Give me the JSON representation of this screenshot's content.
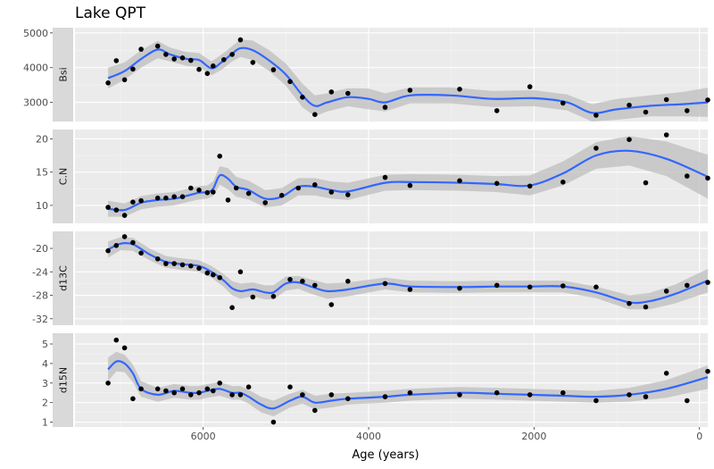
{
  "chart_data": {
    "type": "scatter",
    "title": "Lake QPT",
    "xlabel": "Age (years)",
    "x_reversed": true,
    "xlim": [
      7550,
      -100
    ],
    "x_ticks": [
      6000,
      4000,
      2000,
      0
    ],
    "smoother": {
      "color": "#3366FF",
      "band_color": "#bdbdbd"
    },
    "point_color": "#000000",
    "panels": [
      {
        "name": "Bsi",
        "ylim": [
          2450,
          5150
        ],
        "y_ticks": [
          3000,
          4000,
          5000
        ],
        "points": [
          [
            7150,
            3560
          ],
          [
            7050,
            4200
          ],
          [
            6950,
            3650
          ],
          [
            6850,
            3960
          ],
          [
            6750,
            4530
          ],
          [
            6550,
            4620
          ],
          [
            6450,
            4380
          ],
          [
            6350,
            4250
          ],
          [
            6250,
            4280
          ],
          [
            6150,
            4210
          ],
          [
            6050,
            3950
          ],
          [
            5950,
            3830
          ],
          [
            5880,
            4050
          ],
          [
            5750,
            4230
          ],
          [
            5650,
            4380
          ],
          [
            5550,
            4800
          ],
          [
            5400,
            4150
          ],
          [
            5150,
            3940
          ],
          [
            4950,
            3600
          ],
          [
            4800,
            3150
          ],
          [
            4650,
            2650
          ],
          [
            4450,
            3300
          ],
          [
            4250,
            3260
          ],
          [
            3800,
            2860
          ],
          [
            3500,
            3350
          ],
          [
            2900,
            3380
          ],
          [
            2450,
            2760
          ],
          [
            2050,
            3450
          ],
          [
            1650,
            2980
          ],
          [
            1250,
            2630
          ],
          [
            850,
            2920
          ],
          [
            650,
            2720
          ],
          [
            400,
            3080
          ],
          [
            150,
            2760
          ],
          [
            -100,
            3070
          ]
        ],
        "smooth": [
          [
            7150,
            3700
          ],
          [
            6950,
            3900
          ],
          [
            6750,
            4250
          ],
          [
            6550,
            4520
          ],
          [
            6400,
            4380
          ],
          [
            6200,
            4250
          ],
          [
            6050,
            4220
          ],
          [
            5900,
            3980
          ],
          [
            5780,
            4150
          ],
          [
            5650,
            4400
          ],
          [
            5550,
            4560
          ],
          [
            5400,
            4500
          ],
          [
            5200,
            4200
          ],
          [
            5000,
            3800
          ],
          [
            4800,
            3200
          ],
          [
            4650,
            2900
          ],
          [
            4500,
            3000
          ],
          [
            4250,
            3150
          ],
          [
            4000,
            3100
          ],
          [
            3800,
            3000
          ],
          [
            3500,
            3200
          ],
          [
            3000,
            3200
          ],
          [
            2500,
            3100
          ],
          [
            2000,
            3120
          ],
          [
            1600,
            3000
          ],
          [
            1300,
            2700
          ],
          [
            1000,
            2800
          ],
          [
            600,
            2900
          ],
          [
            200,
            2950
          ],
          [
            -100,
            3000
          ]
        ],
        "band_width": [
          300,
          250,
          250,
          250,
          200,
          200,
          200,
          200,
          220,
          220,
          250,
          280,
          300,
          320,
          340,
          300,
          260,
          260,
          300,
          260,
          230,
          230,
          230,
          230,
          230,
          250,
          300,
          300,
          350,
          420
        ]
      },
      {
        "name": "C.N",
        "ylim": [
          7.3,
          21.4
        ],
        "y_ticks": [
          10,
          15,
          20
        ],
        "points": [
          [
            7150,
            9.7
          ],
          [
            7050,
            9.3
          ],
          [
            6950,
            8.5
          ],
          [
            6850,
            10.5
          ],
          [
            6750,
            10.7
          ],
          [
            6550,
            11.1
          ],
          [
            6450,
            11.1
          ],
          [
            6350,
            11.3
          ],
          [
            6250,
            11.3
          ],
          [
            6150,
            12.6
          ],
          [
            6050,
            12.3
          ],
          [
            5950,
            11.9
          ],
          [
            5880,
            12.0
          ],
          [
            5800,
            17.4
          ],
          [
            5700,
            10.8
          ],
          [
            5600,
            12.6
          ],
          [
            5450,
            11.8
          ],
          [
            5250,
            10.4
          ],
          [
            5050,
            11.5
          ],
          [
            4850,
            12.6
          ],
          [
            4650,
            13.1
          ],
          [
            4450,
            12.0
          ],
          [
            4250,
            11.6
          ],
          [
            3800,
            14.2
          ],
          [
            3500,
            13.0
          ],
          [
            2900,
            13.7
          ],
          [
            2450,
            13.3
          ],
          [
            2050,
            12.9
          ],
          [
            1650,
            13.5
          ],
          [
            1250,
            18.6
          ],
          [
            850,
            19.9
          ],
          [
            650,
            13.4
          ],
          [
            400,
            20.6
          ],
          [
            150,
            14.4
          ],
          [
            -100,
            14.1
          ]
        ],
        "smooth": [
          [
            7150,
            9.5
          ],
          [
            6950,
            9.3
          ],
          [
            6750,
            10.4
          ],
          [
            6550,
            10.8
          ],
          [
            6350,
            11.0
          ],
          [
            6150,
            11.6
          ],
          [
            6050,
            11.9
          ],
          [
            5950,
            12.0
          ],
          [
            5880,
            12.5
          ],
          [
            5800,
            14.5
          ],
          [
            5700,
            14.0
          ],
          [
            5600,
            12.8
          ],
          [
            5450,
            12.3
          ],
          [
            5250,
            11.0
          ],
          [
            5050,
            11.3
          ],
          [
            4850,
            12.8
          ],
          [
            4650,
            12.8
          ],
          [
            4450,
            12.3
          ],
          [
            4250,
            12.1
          ],
          [
            3800,
            13.4
          ],
          [
            3500,
            13.5
          ],
          [
            2900,
            13.4
          ],
          [
            2450,
            13.2
          ],
          [
            2050,
            13.0
          ],
          [
            1650,
            14.8
          ],
          [
            1250,
            17.5
          ],
          [
            850,
            18.2
          ],
          [
            400,
            17.0
          ],
          [
            -100,
            14.3
          ]
        ],
        "band_width": [
          1.2,
          1.0,
          1.0,
          1.0,
          1.0,
          1.0,
          1.0,
          1.0,
          1.1,
          1.4,
          1.6,
          1.5,
          1.4,
          1.3,
          1.3,
          1.3,
          1.3,
          1.3,
          1.3,
          1.2,
          1.2,
          1.2,
          1.2,
          1.5,
          1.8,
          2.0,
          2.2,
          2.6,
          3.3
        ]
      },
      {
        "name": "d13C",
        "ylim": [
          -33.1,
          -17.1
        ],
        "y_ticks": [
          -32,
          -28,
          -24,
          -20
        ],
        "points": [
          [
            7150,
            -20.4
          ],
          [
            7050,
            -19.5
          ],
          [
            6950,
            -18.0
          ],
          [
            6850,
            -19.0
          ],
          [
            6750,
            -20.8
          ],
          [
            6550,
            -21.8
          ],
          [
            6450,
            -22.6
          ],
          [
            6350,
            -22.6
          ],
          [
            6250,
            -22.8
          ],
          [
            6150,
            -23.0
          ],
          [
            6050,
            -23.4
          ],
          [
            5950,
            -24.2
          ],
          [
            5880,
            -24.5
          ],
          [
            5800,
            -25.0
          ],
          [
            5650,
            -30.1
          ],
          [
            5550,
            -24.0
          ],
          [
            5400,
            -28.3
          ],
          [
            5150,
            -28.2
          ],
          [
            4950,
            -25.3
          ],
          [
            4800,
            -25.6
          ],
          [
            4650,
            -26.3
          ],
          [
            4450,
            -29.6
          ],
          [
            4250,
            -25.6
          ],
          [
            3800,
            -26.0
          ],
          [
            3500,
            -27.0
          ],
          [
            2900,
            -26.8
          ],
          [
            2450,
            -26.3
          ],
          [
            2050,
            -26.6
          ],
          [
            1650,
            -26.4
          ],
          [
            1250,
            -26.6
          ],
          [
            850,
            -29.4
          ],
          [
            650,
            -30.0
          ],
          [
            400,
            -27.3
          ],
          [
            150,
            -26.3
          ],
          [
            -100,
            -25.8
          ]
        ],
        "smooth": [
          [
            7150,
            -20.2
          ],
          [
            7000,
            -19.2
          ],
          [
            6850,
            -19.3
          ],
          [
            6650,
            -21.0
          ],
          [
            6450,
            -22.3
          ],
          [
            6250,
            -22.7
          ],
          [
            6050,
            -23.0
          ],
          [
            5900,
            -24.0
          ],
          [
            5750,
            -25.5
          ],
          [
            5650,
            -26.8
          ],
          [
            5550,
            -27.3
          ],
          [
            5400,
            -27.0
          ],
          [
            5250,
            -27.5
          ],
          [
            5150,
            -27.5
          ],
          [
            5000,
            -26.0
          ],
          [
            4850,
            -25.8
          ],
          [
            4700,
            -26.5
          ],
          [
            4500,
            -27.3
          ],
          [
            4250,
            -27.0
          ],
          [
            3800,
            -26.0
          ],
          [
            3500,
            -26.5
          ],
          [
            2900,
            -26.6
          ],
          [
            2450,
            -26.5
          ],
          [
            2050,
            -26.5
          ],
          [
            1650,
            -26.5
          ],
          [
            1250,
            -27.5
          ],
          [
            850,
            -29.2
          ],
          [
            600,
            -29.0
          ],
          [
            300,
            -27.8
          ],
          [
            -100,
            -25.5
          ]
        ],
        "band_width": [
          1.4,
          1.1,
          1.1,
          1.0,
          1.0,
          1.0,
          1.0,
          1.0,
          1.1,
          1.2,
          1.3,
          1.2,
          1.2,
          1.2,
          1.2,
          1.1,
          1.2,
          1.3,
          1.2,
          1.0,
          1.0,
          1.0,
          1.0,
          1.0,
          1.0,
          1.0,
          1.2,
          1.4,
          1.6,
          2.0
        ]
      },
      {
        "name": "d15N",
        "ylim": [
          0.75,
          5.55
        ],
        "y_ticks": [
          1,
          2,
          3,
          4,
          5
        ],
        "points": [
          [
            7150,
            3.0
          ],
          [
            7050,
            5.2
          ],
          [
            6950,
            4.8
          ],
          [
            6850,
            2.2
          ],
          [
            6750,
            2.7
          ],
          [
            6550,
            2.7
          ],
          [
            6450,
            2.6
          ],
          [
            6350,
            2.5
          ],
          [
            6250,
            2.7
          ],
          [
            6150,
            2.4
          ],
          [
            6050,
            2.5
          ],
          [
            5950,
            2.7
          ],
          [
            5880,
            2.6
          ],
          [
            5800,
            3.0
          ],
          [
            5650,
            2.4
          ],
          [
            5550,
            2.4
          ],
          [
            5450,
            2.8
          ],
          [
            5150,
            1.0
          ],
          [
            4950,
            2.8
          ],
          [
            4800,
            2.4
          ],
          [
            4650,
            1.6
          ],
          [
            4450,
            2.4
          ],
          [
            4250,
            2.2
          ],
          [
            3800,
            2.3
          ],
          [
            3500,
            2.5
          ],
          [
            2900,
            2.4
          ],
          [
            2450,
            2.5
          ],
          [
            2050,
            2.4
          ],
          [
            1650,
            2.5
          ],
          [
            1250,
            2.1
          ],
          [
            850,
            2.4
          ],
          [
            650,
            2.3
          ],
          [
            400,
            3.5
          ],
          [
            150,
            2.1
          ],
          [
            -100,
            3.6
          ]
        ],
        "smooth": [
          [
            7150,
            3.7
          ],
          [
            7050,
            4.1
          ],
          [
            6950,
            4.0
          ],
          [
            6850,
            3.5
          ],
          [
            6750,
            2.7
          ],
          [
            6550,
            2.4
          ],
          [
            6350,
            2.6
          ],
          [
            6150,
            2.5
          ],
          [
            6050,
            2.5
          ],
          [
            5950,
            2.6
          ],
          [
            5800,
            2.7
          ],
          [
            5650,
            2.5
          ],
          [
            5550,
            2.5
          ],
          [
            5450,
            2.3
          ],
          [
            5300,
            1.9
          ],
          [
            5150,
            1.7
          ],
          [
            4950,
            2.1
          ],
          [
            4800,
            2.3
          ],
          [
            4650,
            2.0
          ],
          [
            4450,
            2.1
          ],
          [
            4250,
            2.2
          ],
          [
            3800,
            2.3
          ],
          [
            3500,
            2.4
          ],
          [
            2900,
            2.5
          ],
          [
            2450,
            2.45
          ],
          [
            2050,
            2.4
          ],
          [
            1650,
            2.35
          ],
          [
            1250,
            2.3
          ],
          [
            850,
            2.4
          ],
          [
            400,
            2.7
          ],
          [
            -100,
            3.3
          ]
        ],
        "band_width": [
          0.6,
          0.5,
          0.45,
          0.45,
          0.4,
          0.35,
          0.35,
          0.35,
          0.35,
          0.35,
          0.35,
          0.35,
          0.35,
          0.35,
          0.4,
          0.4,
          0.35,
          0.35,
          0.35,
          0.35,
          0.3,
          0.3,
          0.3,
          0.3,
          0.3,
          0.3,
          0.3,
          0.3,
          0.35,
          0.45,
          0.6
        ]
      }
    ]
  }
}
